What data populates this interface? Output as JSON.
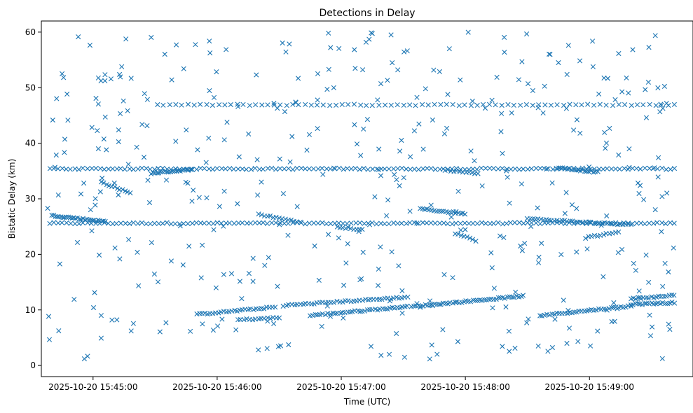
{
  "chart_data": {
    "type": "scatter",
    "title": "Detections in Delay",
    "xlabel": "Time (UTC)",
    "ylabel": "Bistatic Delay (km)",
    "x_unit": "time (UTC)",
    "xlim": [
      "2025-10-20 15:44:35",
      "2025-10-20 15:49:47"
    ],
    "ylim": [
      -2,
      62
    ],
    "x_ticks": [
      "2025-10-20 15:45:00",
      "2025-10-20 15:46:00",
      "2025-10-20 15:47:00",
      "2025-10-20 15:48:00",
      "2025-10-20 15:49:00"
    ],
    "y_ticks": [
      0,
      10,
      20,
      30,
      40,
      50,
      60
    ],
    "marker": "x",
    "color": "#1f77b4",
    "grid": false,
    "legend": "none",
    "tracks": [
      {
        "x_start": "2025-10-20 15:44:39",
        "x_end": "2025-10-20 15:49:41",
        "y_start": 25.6,
        "y_end": 25.6,
        "count": 150
      },
      {
        "x_start": "2025-10-20 15:44:39",
        "x_end": "2025-10-20 15:49:41",
        "y_start": 35.4,
        "y_end": 35.4,
        "count": 150
      },
      {
        "x_start": "2025-10-20 15:45:31",
        "x_end": "2025-10-20 15:49:41",
        "y_start": 46.9,
        "y_end": 46.9,
        "count": 85
      },
      {
        "x_start": "2025-10-20 15:44:40",
        "x_end": "2025-10-20 15:45:06",
        "y_start": 27.0,
        "y_end": 25.9,
        "count": 30
      },
      {
        "x_start": "2025-10-20 15:45:04",
        "x_end": "2025-10-20 15:45:18",
        "y_start": 33.0,
        "y_end": 31.0,
        "count": 12
      },
      {
        "x_start": "2025-10-20 15:45:28",
        "x_end": "2025-10-20 15:45:48",
        "y_start": 34.6,
        "y_end": 35.3,
        "count": 22
      },
      {
        "x_start": "2025-10-20 15:45:50",
        "x_end": "2025-10-20 15:46:28",
        "y_start": 9.2,
        "y_end": 10.5,
        "count": 30
      },
      {
        "x_start": "2025-10-20 15:46:10",
        "x_end": "2025-10-20 15:46:30",
        "y_start": 8.2,
        "y_end": 8.6,
        "count": 15
      },
      {
        "x_start": "2025-10-20 15:46:20",
        "x_end": "2025-10-20 15:46:40",
        "y_start": 27.2,
        "y_end": 25.8,
        "count": 15
      },
      {
        "x_start": "2025-10-20 15:46:32",
        "x_end": "2025-10-20 15:47:32",
        "y_start": 10.8,
        "y_end": 12.3,
        "count": 45
      },
      {
        "x_start": "2025-10-20 15:46:45",
        "x_end": "2025-10-20 15:47:32",
        "y_start": 9.0,
        "y_end": 10.6,
        "count": 40
      },
      {
        "x_start": "2025-10-20 15:46:58",
        "x_end": "2025-10-20 15:47:10",
        "y_start": 25.0,
        "y_end": 24.4,
        "count": 10
      },
      {
        "x_start": "2025-10-20 15:47:34",
        "x_end": "2025-10-20 15:48:28",
        "y_start": 10.6,
        "y_end": 12.5,
        "count": 50
      },
      {
        "x_start": "2025-10-20 15:47:38",
        "x_end": "2025-10-20 15:48:00",
        "y_start": 28.2,
        "y_end": 27.3,
        "count": 20
      },
      {
        "x_start": "2025-10-20 15:47:50",
        "x_end": "2025-10-20 15:48:06",
        "y_start": 35.2,
        "y_end": 34.6,
        "count": 12
      },
      {
        "x_start": "2025-10-20 15:47:55",
        "x_end": "2025-10-20 15:48:05",
        "y_start": 23.8,
        "y_end": 22.5,
        "count": 8
      },
      {
        "x_start": "2025-10-20 15:48:30",
        "x_end": "2025-10-20 15:49:20",
        "y_start": 26.4,
        "y_end": 25.3,
        "count": 40
      },
      {
        "x_start": "2025-10-20 15:48:36",
        "x_end": "2025-10-20 15:49:20",
        "y_start": 9.0,
        "y_end": 10.7,
        "count": 38
      },
      {
        "x_start": "2025-10-20 15:48:44",
        "x_end": "2025-10-20 15:49:04",
        "y_start": 35.6,
        "y_end": 34.8,
        "count": 20
      },
      {
        "x_start": "2025-10-20 15:48:58",
        "x_end": "2025-10-20 15:49:14",
        "y_start": 23.0,
        "y_end": 24.0,
        "count": 12
      },
      {
        "x_start": "2025-10-20 15:49:20",
        "x_end": "2025-10-20 15:49:41",
        "y_start": 11.0,
        "y_end": 11.3,
        "count": 20
      },
      {
        "x_start": "2025-10-20 15:49:20",
        "x_end": "2025-10-20 15:49:41",
        "y_start": 12.0,
        "y_end": 12.6,
        "count": 18
      }
    ],
    "clutter": {
      "x_start": "2025-10-20 15:44:38",
      "x_end": "2025-10-20 15:49:42",
      "y_min": 1,
      "y_max": 60,
      "count": 420
    }
  }
}
